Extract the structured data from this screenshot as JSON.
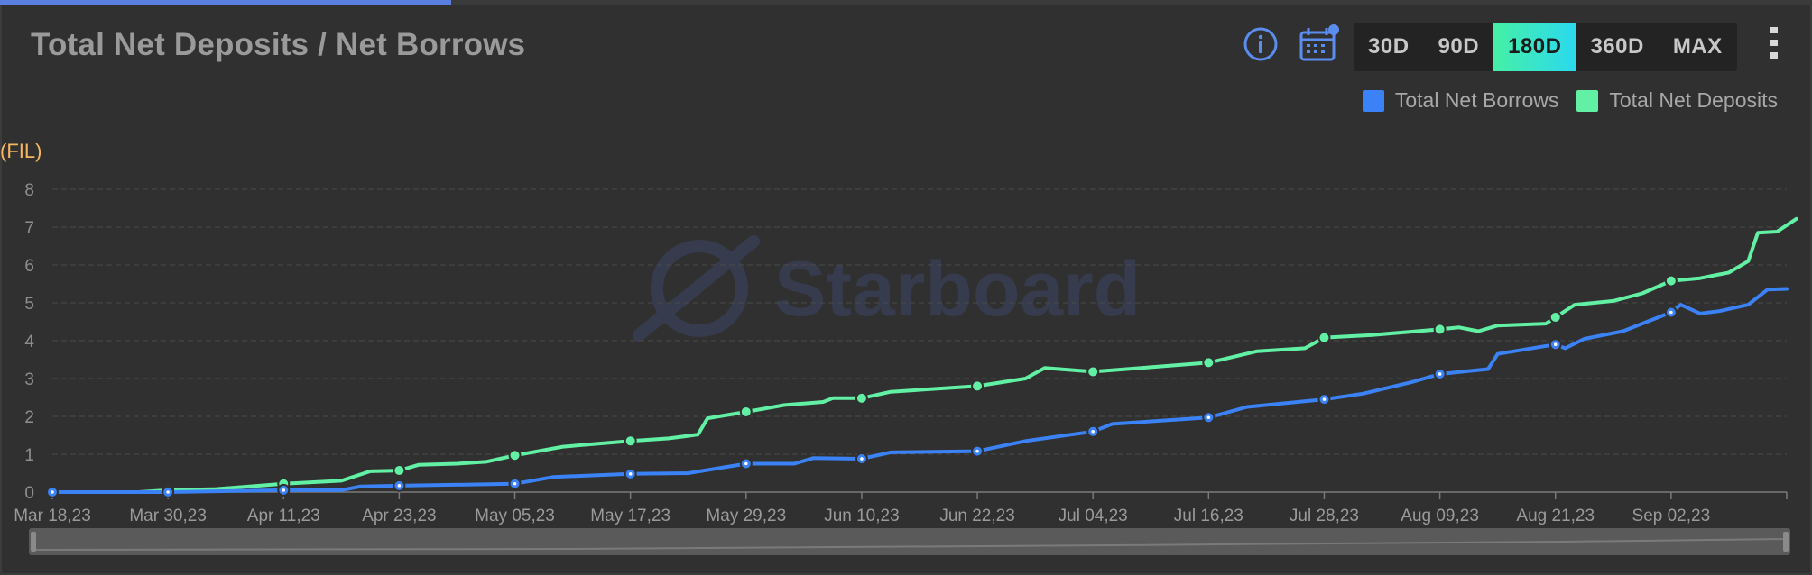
{
  "header": {
    "title": "Total Net Deposits / Net Borrows"
  },
  "toolbar": {
    "icons": [
      "info-icon",
      "calendar-icon",
      "more-vertical-icon"
    ],
    "ranges": [
      "30D",
      "90D",
      "180D",
      "360D",
      "MAX"
    ],
    "selected_range": "180D"
  },
  "colors": {
    "borrows": "#3b82f6",
    "deposits": "#62f0a5",
    "axis_unit": "#f4b860",
    "active_range_gradient": [
      "#45f0a6",
      "#2bd9ee"
    ]
  },
  "watermark": "Starboard",
  "chart_data": {
    "type": "line",
    "ylabel": "(FIL)",
    "ylim": [
      0,
      8
    ],
    "yticks": [
      0,
      1,
      2,
      3,
      4,
      5,
      6,
      7,
      8
    ],
    "xticks": [
      "Mar 18,23",
      "Mar 30,23",
      "Apr 11,23",
      "Apr 23,23",
      "May 05,23",
      "May 17,23",
      "May 29,23",
      "Jun 10,23",
      "Jun 22,23",
      "Jul 04,23",
      "Jul 16,23",
      "Jul 28,23",
      "Aug 09,23",
      "Aug 21,23",
      "Sep 02,23"
    ],
    "legend_position": "top-right",
    "grid": true,
    "series": [
      {
        "name": "Total Net Borrows",
        "points": [
          [
            "Mar 18,23",
            0.0
          ],
          [
            "Mar 30,23",
            0.0
          ],
          [
            "Apr 11,23",
            0.05
          ],
          [
            "Apr 17,23",
            0.05
          ],
          [
            "Apr 19,23",
            0.15
          ],
          [
            "Apr 23,23",
            0.17
          ],
          [
            "May 05,23",
            0.22
          ],
          [
            "May 09,23",
            0.4
          ],
          [
            "May 17,23",
            0.48
          ],
          [
            "May 23,23",
            0.5
          ],
          [
            "May 29,23",
            0.75
          ],
          [
            "Jun 03,23",
            0.75
          ],
          [
            "Jun 05,23",
            0.9
          ],
          [
            "Jun 10,23",
            0.88
          ],
          [
            "Jun 13,23",
            1.05
          ],
          [
            "Jun 22,23",
            1.08
          ],
          [
            "Jun 27,23",
            1.35
          ],
          [
            "Jul 04,23",
            1.6
          ],
          [
            "Jul 06,23",
            1.8
          ],
          [
            "Jul 16,23",
            1.97
          ],
          [
            "Jul 20,23",
            2.25
          ],
          [
            "Jul 28,23",
            2.45
          ],
          [
            "Aug 01,23",
            2.6
          ],
          [
            "Aug 06,23",
            2.9
          ],
          [
            "Aug 09,23",
            3.12
          ],
          [
            "Aug 14,23",
            3.25
          ],
          [
            "Aug 15,23",
            3.65
          ],
          [
            "Aug 21,23",
            3.9
          ],
          [
            "Aug 22,23",
            3.8
          ],
          [
            "Aug 24,23",
            4.05
          ],
          [
            "Aug 28,23",
            4.25
          ],
          [
            "Sep 02,23",
            4.75
          ],
          [
            "Sep 03,23",
            4.95
          ],
          [
            "Sep 05,23",
            4.72
          ],
          [
            "Sep 07,23",
            4.78
          ],
          [
            "Sep 10,23",
            4.95
          ],
          [
            "Sep 12,23",
            5.35
          ],
          [
            "Sep 14,23",
            5.37
          ]
        ],
        "markers": [
          "Mar 18,23",
          "Mar 30,23",
          "Apr 11,23",
          "Apr 23,23",
          "May 05,23",
          "May 17,23",
          "May 29,23",
          "Jun 10,23",
          "Jun 22,23",
          "Jul 04,23",
          "Jul 16,23",
          "Jul 28,23",
          "Aug 09,23",
          "Aug 21,23",
          "Sep 02,23"
        ]
      },
      {
        "name": "Total Net Deposits",
        "points": [
          [
            "Mar 18,23",
            0.0
          ],
          [
            "Mar 27,23",
            0.0
          ],
          [
            "Mar 30,23",
            0.05
          ],
          [
            "Apr 04,23",
            0.08
          ],
          [
            "Apr 11,23",
            0.22
          ],
          [
            "Apr 17,23",
            0.3
          ],
          [
            "Apr 20,23",
            0.55
          ],
          [
            "Apr 23,23",
            0.57
          ],
          [
            "Apr 25,23",
            0.72
          ],
          [
            "Apr 29,23",
            0.75
          ],
          [
            "May 02,23",
            0.8
          ],
          [
            "May 05,23",
            0.97
          ],
          [
            "May 10,23",
            1.2
          ],
          [
            "May 17,23",
            1.35
          ],
          [
            "May 21,23",
            1.42
          ],
          [
            "May 24,23",
            1.52
          ],
          [
            "May 25,23",
            1.95
          ],
          [
            "May 29,23",
            2.12
          ],
          [
            "Jun 02,23",
            2.3
          ],
          [
            "Jun 06,23",
            2.38
          ],
          [
            "Jun 07,23",
            2.48
          ],
          [
            "Jun 10,23",
            2.48
          ],
          [
            "Jun 13,23",
            2.65
          ],
          [
            "Jun 22,23",
            2.8
          ],
          [
            "Jun 27,23",
            3.0
          ],
          [
            "Jun 29,23",
            3.28
          ],
          [
            "Jul 04,23",
            3.18
          ],
          [
            "Jul 10,23",
            3.3
          ],
          [
            "Jul 16,23",
            3.42
          ],
          [
            "Jul 21,23",
            3.72
          ],
          [
            "Jul 26,23",
            3.8
          ],
          [
            "Jul 28,23",
            4.08
          ],
          [
            "Aug 02,23",
            4.15
          ],
          [
            "Aug 09,23",
            4.3
          ],
          [
            "Aug 11,23",
            4.35
          ],
          [
            "Aug 13,23",
            4.25
          ],
          [
            "Aug 15,23",
            4.4
          ],
          [
            "Aug 20,23",
            4.45
          ],
          [
            "Aug 21,23",
            4.62
          ],
          [
            "Aug 23,23",
            4.95
          ],
          [
            "Aug 27,23",
            5.05
          ],
          [
            "Aug 30,23",
            5.25
          ],
          [
            "Sep 02,23",
            5.58
          ],
          [
            "Sep 05,23",
            5.65
          ],
          [
            "Sep 08,23",
            5.8
          ],
          [
            "Sep 10,23",
            6.1
          ],
          [
            "Sep 11,23",
            6.85
          ],
          [
            "Sep 13,23",
            6.88
          ],
          [
            "Sep 15,23",
            7.22
          ]
        ],
        "markers": [
          "Mar 18,23",
          "Mar 30,23",
          "Apr 11,23",
          "Apr 23,23",
          "May 05,23",
          "May 17,23",
          "May 29,23",
          "Jun 10,23",
          "Jun 22,23",
          "Jul 04,23",
          "Jul 16,23",
          "Jul 28,23",
          "Aug 09,23",
          "Aug 21,23",
          "Sep 02,23"
        ]
      }
    ]
  }
}
